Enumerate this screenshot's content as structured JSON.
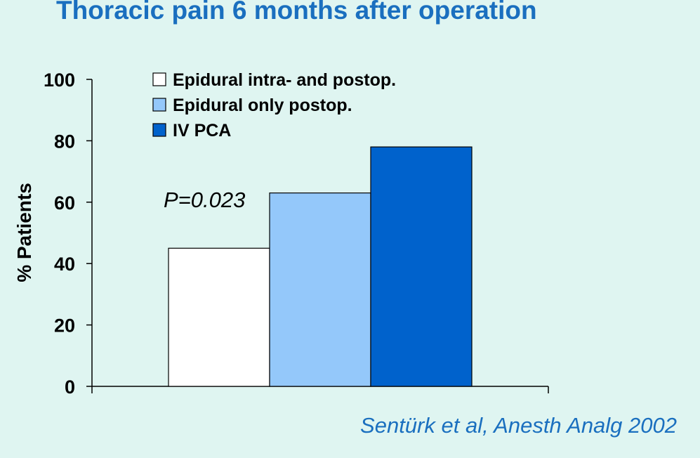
{
  "slide": {
    "title": "Thoracic pain 6 months after operation",
    "citation": "Sentürk et al, Anesth Analg 2002"
  },
  "chart_data": {
    "type": "bar",
    "title": "",
    "xlabel": "",
    "ylabel": "% Patients",
    "ylim": [
      0,
      100
    ],
    "yticks": [
      0,
      20,
      40,
      60,
      80,
      100
    ],
    "grid": false,
    "legend_position": "top-left",
    "categories": [
      ""
    ],
    "series": [
      {
        "name": "Epidural intra- and postop.",
        "values": [
          45
        ],
        "color": "#ffffff"
      },
      {
        "name": "Epidural only postop.",
        "values": [
          63
        ],
        "color": "#94c8fa"
      },
      {
        "name": "IV PCA",
        "values": [
          78
        ],
        "color": "#0062cc"
      }
    ],
    "annotations": [
      {
        "text": "P=0.023"
      }
    ]
  }
}
